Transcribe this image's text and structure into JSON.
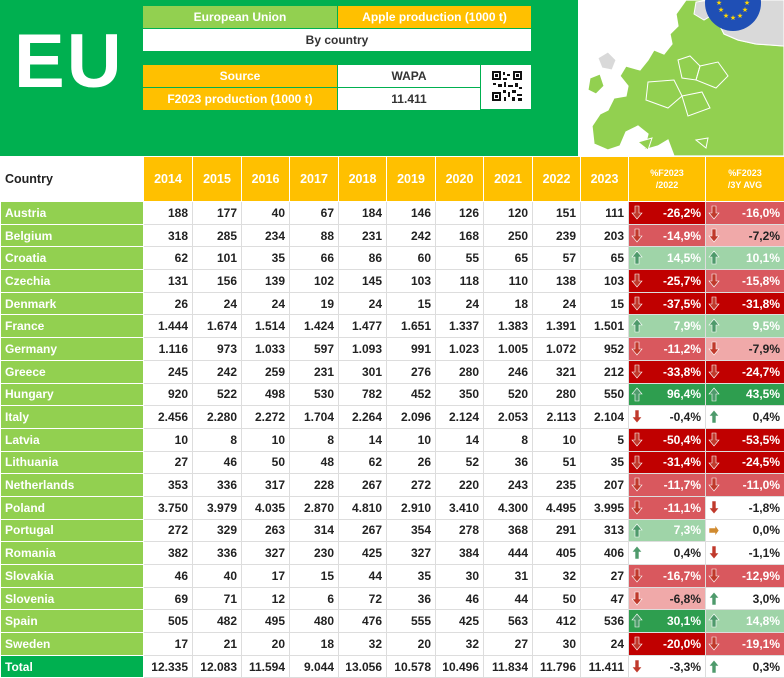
{
  "header": {
    "big_label": "EU",
    "region_label": "European Union",
    "title": "Apple production (1000 t)",
    "subtitle": "By country",
    "source_label": "Source",
    "source_value": "WAPA",
    "forecast_label": "F2023 production (1000 t)",
    "forecast_value": "11.411"
  },
  "colors": {
    "header_green": "#00b050",
    "country_green": "#92d050",
    "accent_orange": "#ffc000",
    "positive": "#57a86b",
    "negative": "#c00000"
  },
  "chart_data": {
    "type": "table",
    "columns": [
      "Country",
      "2014",
      "2015",
      "2016",
      "2017",
      "2018",
      "2019",
      "2020",
      "2021",
      "2022",
      "2023",
      "%F2023 /2022",
      "%F2023 /3Y AVG"
    ],
    "rows": [
      {
        "country": "Austria",
        "values": [
          "188",
          "177",
          "40",
          "67",
          "184",
          "146",
          "126",
          "120",
          "151",
          "111"
        ],
        "pct1": "-26,2%",
        "pct2": "-16,0%"
      },
      {
        "country": "Belgium",
        "values": [
          "318",
          "285",
          "234",
          "88",
          "231",
          "242",
          "168",
          "250",
          "239",
          "203"
        ],
        "pct1": "-14,9%",
        "pct2": "-7,2%"
      },
      {
        "country": "Croatia",
        "values": [
          "62",
          "101",
          "35",
          "66",
          "86",
          "60",
          "55",
          "65",
          "57",
          "65"
        ],
        "pct1": "14,5%",
        "pct2": "10,1%"
      },
      {
        "country": "Czechia",
        "values": [
          "131",
          "156",
          "139",
          "102",
          "145",
          "103",
          "118",
          "110",
          "138",
          "103"
        ],
        "pct1": "-25,7%",
        "pct2": "-15,8%"
      },
      {
        "country": "Denmark",
        "values": [
          "26",
          "24",
          "24",
          "19",
          "24",
          "15",
          "24",
          "18",
          "24",
          "15"
        ],
        "pct1": "-37,5%",
        "pct2": "-31,8%"
      },
      {
        "country": "France",
        "values": [
          "1.444",
          "1.674",
          "1.514",
          "1.424",
          "1.477",
          "1.651",
          "1.337",
          "1.383",
          "1.391",
          "1.501"
        ],
        "pct1": "7,9%",
        "pct2": "9,5%"
      },
      {
        "country": "Germany",
        "values": [
          "1.116",
          "973",
          "1.033",
          "597",
          "1.093",
          "991",
          "1.023",
          "1.005",
          "1.072",
          "952"
        ],
        "pct1": "-11,2%",
        "pct2": "-7,9%"
      },
      {
        "country": "Greece",
        "values": [
          "245",
          "242",
          "259",
          "231",
          "301",
          "276",
          "280",
          "246",
          "321",
          "212"
        ],
        "pct1": "-33,8%",
        "pct2": "-24,7%"
      },
      {
        "country": "Hungary",
        "values": [
          "920",
          "522",
          "498",
          "530",
          "782",
          "452",
          "350",
          "520",
          "280",
          "550"
        ],
        "pct1": "96,4%",
        "pct2": "43,5%"
      },
      {
        "country": "Italy",
        "values": [
          "2.456",
          "2.280",
          "2.272",
          "1.704",
          "2.264",
          "2.096",
          "2.124",
          "2.053",
          "2.113",
          "2.104"
        ],
        "pct1": "-0,4%",
        "pct2": "0,4%"
      },
      {
        "country": "Latvia",
        "values": [
          "10",
          "8",
          "10",
          "8",
          "14",
          "10",
          "14",
          "8",
          "10",
          "5"
        ],
        "pct1": "-50,4%",
        "pct2": "-53,5%"
      },
      {
        "country": "Lithuania",
        "values": [
          "27",
          "46",
          "50",
          "48",
          "62",
          "26",
          "52",
          "36",
          "51",
          "35"
        ],
        "pct1": "-31,4%",
        "pct2": "-24,5%"
      },
      {
        "country": "Netherlands",
        "values": [
          "353",
          "336",
          "317",
          "228",
          "267",
          "272",
          "220",
          "243",
          "235",
          "207"
        ],
        "pct1": "-11,7%",
        "pct2": "-11,0%"
      },
      {
        "country": "Poland",
        "values": [
          "3.750",
          "3.979",
          "4.035",
          "2.870",
          "4.810",
          "2.910",
          "3.410",
          "4.300",
          "4.495",
          "3.995"
        ],
        "pct1": "-11,1%",
        "pct2": "-1,8%"
      },
      {
        "country": "Portugal",
        "values": [
          "272",
          "329",
          "263",
          "314",
          "267",
          "354",
          "278",
          "368",
          "291",
          "313"
        ],
        "pct1": "7,3%",
        "pct2": "0,0%"
      },
      {
        "country": "Romania",
        "values": [
          "382",
          "336",
          "327",
          "230",
          "425",
          "327",
          "384",
          "444",
          "405",
          "406"
        ],
        "pct1": "0,4%",
        "pct2": "-1,1%"
      },
      {
        "country": "Slovakia",
        "values": [
          "46",
          "40",
          "17",
          "15",
          "44",
          "35",
          "30",
          "31",
          "32",
          "27"
        ],
        "pct1": "-16,7%",
        "pct2": "-12,9%"
      },
      {
        "country": "Slovenia",
        "values": [
          "69",
          "71",
          "12",
          "6",
          "72",
          "36",
          "46",
          "44",
          "50",
          "47"
        ],
        "pct1": "-6,8%",
        "pct2": "3,0%"
      },
      {
        "country": "Spain",
        "values": [
          "505",
          "482",
          "495",
          "480",
          "476",
          "555",
          "425",
          "563",
          "412",
          "536"
        ],
        "pct1": "30,1%",
        "pct2": "14,8%"
      },
      {
        "country": "Sweden",
        "values": [
          "17",
          "21",
          "20",
          "18",
          "32",
          "20",
          "32",
          "27",
          "30",
          "24"
        ],
        "pct1": "-20,0%",
        "pct2": "-19,1%"
      }
    ],
    "total": {
      "country": "Total",
      "values": [
        "12.335",
        "12.083",
        "11.594",
        "9.044",
        "13.056",
        "10.578",
        "10.496",
        "11.834",
        "11.796",
        "11.411"
      ],
      "pct1": "-3,3%",
      "pct2": "0,3%"
    }
  }
}
